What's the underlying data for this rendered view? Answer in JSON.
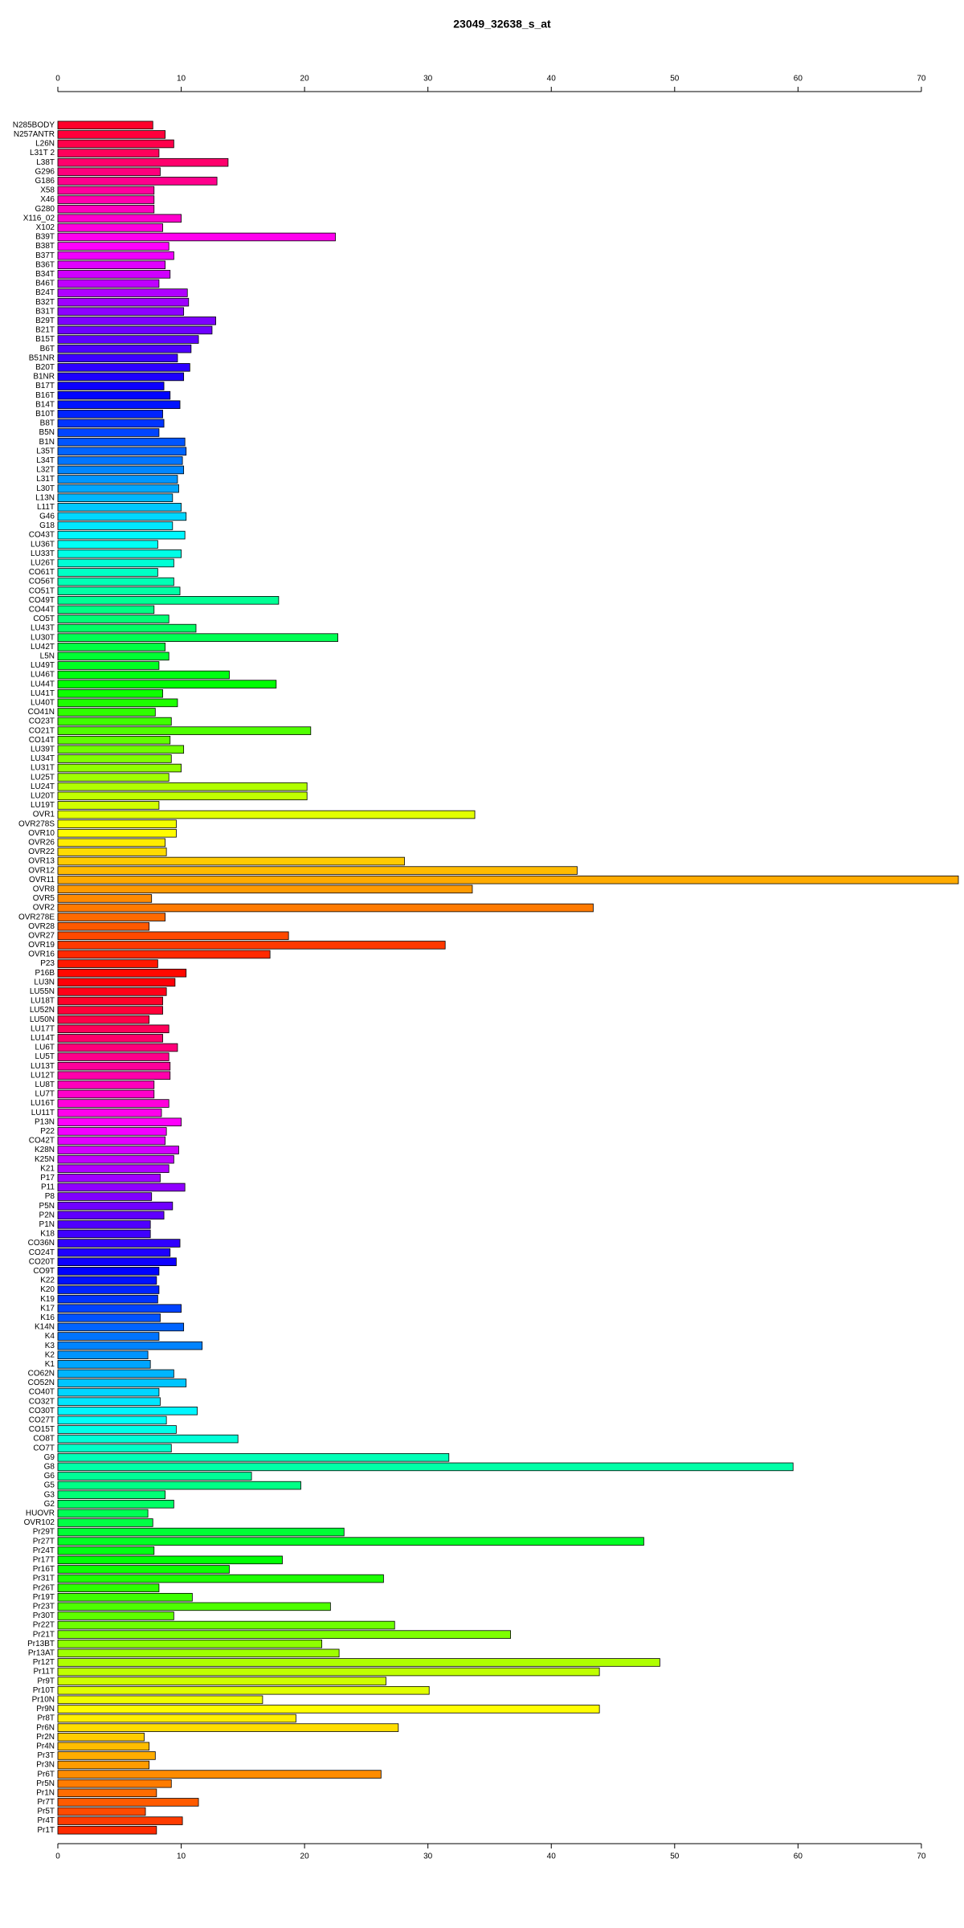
{
  "chart_data": {
    "type": "barh",
    "title": "23049_32638_s_at",
    "categories": [
      "N285BODY",
      "N257ANTR",
      "L26N",
      "L31T 2",
      "L38T",
      "G296",
      "G186",
      "X58",
      "X46",
      "G280",
      "X116_02",
      "X102",
      "B39T",
      "B38T",
      "B37T",
      "B36T",
      "B34T",
      "B46T",
      "B24T",
      "B32T",
      "B31T",
      "B29T",
      "B21T",
      "B15T",
      "B6T",
      "B51NR",
      "B20T",
      "B1NR",
      "B17T",
      "B16T",
      "B14T",
      "B10T",
      "B8T",
      "B5N",
      "B1N",
      "L35T",
      "L34T",
      "L32T",
      "L31T",
      "L30T",
      "L13N",
      "L11T",
      "G46",
      "G18",
      "CO43T",
      "LU36T",
      "LU33T",
      "LU26T",
      "CO61T",
      "CO56T",
      "CO51T",
      "CO49T",
      "CO44T",
      "CO5T",
      "LU43T",
      "LU30T",
      "LU42T",
      "L5N",
      "LU49T",
      "LU46T",
      "LU44T",
      "LU41T",
      "LU40T",
      "CO41N",
      "CO23T",
      "CO21T",
      "CO14T",
      "LU39T",
      "LU34T",
      "LU31T",
      "LU25T",
      "LU24T",
      "LU20T",
      "LU19T",
      "OVR1",
      "OVR278S",
      "OVR10",
      "OVR26",
      "OVR22",
      "OVR13",
      "OVR12",
      "OVR11",
      "OVR8",
      "OVR5",
      "OVR2",
      "OVR278E",
      "OVR28",
      "OVR27",
      "OVR19",
      "OVR16",
      "P23",
      "P16B",
      "LU3N",
      "LU55N",
      "LU18T",
      "LU52N",
      "LU50N",
      "LU17T",
      "LU14T",
      "LU6T",
      "LU5T",
      "LU13T",
      "LU12T",
      "LU8T",
      "LU7T",
      "LU16T",
      "LU11T",
      "P13N",
      "P22",
      "CO42T",
      "K28N",
      "K25N",
      "K21",
      "P17",
      "P11",
      "P8",
      "P5N",
      "P2N",
      "P1N",
      "K18",
      "CO36N",
      "CO24T",
      "CO20T",
      "CO9T",
      "K22",
      "K20",
      "K19",
      "K17",
      "K16",
      "K14N",
      "K4",
      "K3",
      "K2",
      "K1",
      "CO62N",
      "CO52N",
      "CO40T",
      "CO32T",
      "CO30T",
      "CO27T",
      "CO15T",
      "CO8T",
      "CO7T",
      "G9",
      "G8",
      "G6",
      "G5",
      "G3",
      "G2",
      "HUOVR",
      "OVR102",
      "Pr29T",
      "Pr27T",
      "Pr24T",
      "Pr17T",
      "Pr16T",
      "Pr31T",
      "Pr26T",
      "Pr19T",
      "Pr23T",
      "Pr30T",
      "Pr22T",
      "Pr21T",
      "Pr13BT",
      "Pr13AT",
      "Pr12T",
      "Pr11T",
      "Pr9T",
      "Pr10T",
      "Pr10N",
      "Pr9N",
      "Pr8T",
      "Pr6N",
      "Pr2N",
      "Pr4N",
      "Pr3T",
      "Pr3N",
      "Pr6T",
      "Pr5N",
      "Pr1N",
      "Pr7T",
      "Pr5T",
      "Pr4T",
      "Pr1T"
    ],
    "values": [
      7.7,
      8.7,
      9.4,
      8.2,
      13.8,
      8.3,
      12.9,
      7.8,
      7.8,
      7.8,
      10.0,
      8.5,
      22.5,
      9.0,
      9.4,
      8.7,
      9.1,
      8.2,
      10.5,
      10.6,
      10.2,
      12.8,
      12.5,
      11.4,
      10.8,
      9.7,
      10.7,
      10.2,
      8.6,
      9.1,
      9.9,
      8.5,
      8.6,
      8.2,
      10.3,
      10.4,
      10.1,
      10.2,
      9.7,
      9.8,
      9.3,
      10.0,
      10.4,
      9.3,
      10.3,
      8.1,
      10.0,
      9.4,
      8.1,
      9.4,
      9.9,
      17.9,
      7.8,
      9.0,
      11.2,
      22.7,
      8.7,
      9.0,
      8.2,
      13.9,
      17.7,
      8.5,
      9.7,
      7.9,
      9.2,
      20.5,
      9.1,
      10.2,
      9.2,
      10.0,
      9.0,
      20.2,
      20.2,
      8.2,
      33.8,
      9.6,
      9.6,
      8.7,
      8.8,
      28.1,
      42.1,
      73.0,
      33.6,
      7.6,
      43.4,
      8.7,
      7.4,
      18.7,
      31.4,
      17.2,
      8.1,
      10.4,
      9.5,
      8.8,
      8.5,
      8.5,
      7.4,
      9.0,
      8.5,
      9.7,
      9.0,
      9.1,
      9.1,
      7.8,
      7.8,
      9.0,
      8.4,
      10.0,
      8.8,
      8.7,
      9.8,
      9.4,
      9.0,
      8.3,
      10.3,
      7.6,
      9.3,
      8.6,
      7.5,
      7.5,
      9.9,
      9.1,
      9.6,
      8.2,
      8.0,
      8.2,
      8.1,
      10.0,
      8.3,
      10.2,
      8.2,
      11.7,
      7.3,
      7.5,
      9.4,
      10.4,
      8.2,
      8.3,
      11.3,
      8.8,
      9.6,
      14.6,
      9.2,
      31.7,
      59.6,
      15.7,
      19.7,
      8.7,
      9.4,
      7.3,
      7.7,
      23.2,
      47.5,
      7.8,
      18.2,
      13.9,
      26.4,
      8.2,
      10.9,
      22.1,
      9.4,
      27.3,
      36.7,
      21.4,
      22.8,
      48.8,
      43.9,
      26.6,
      30.1,
      16.6,
      43.9,
      19.3,
      27.6,
      7.0,
      7.4,
      7.9,
      7.4,
      26.2,
      9.2,
      8.0,
      11.4,
      7.1,
      10.1,
      8.0
    ],
    "color_hues": [
      350,
      10
    ],
    "xlim": [
      0,
      73
    ],
    "xticks": [
      0,
      10,
      20,
      30,
      40,
      50,
      60,
      70
    ]
  }
}
